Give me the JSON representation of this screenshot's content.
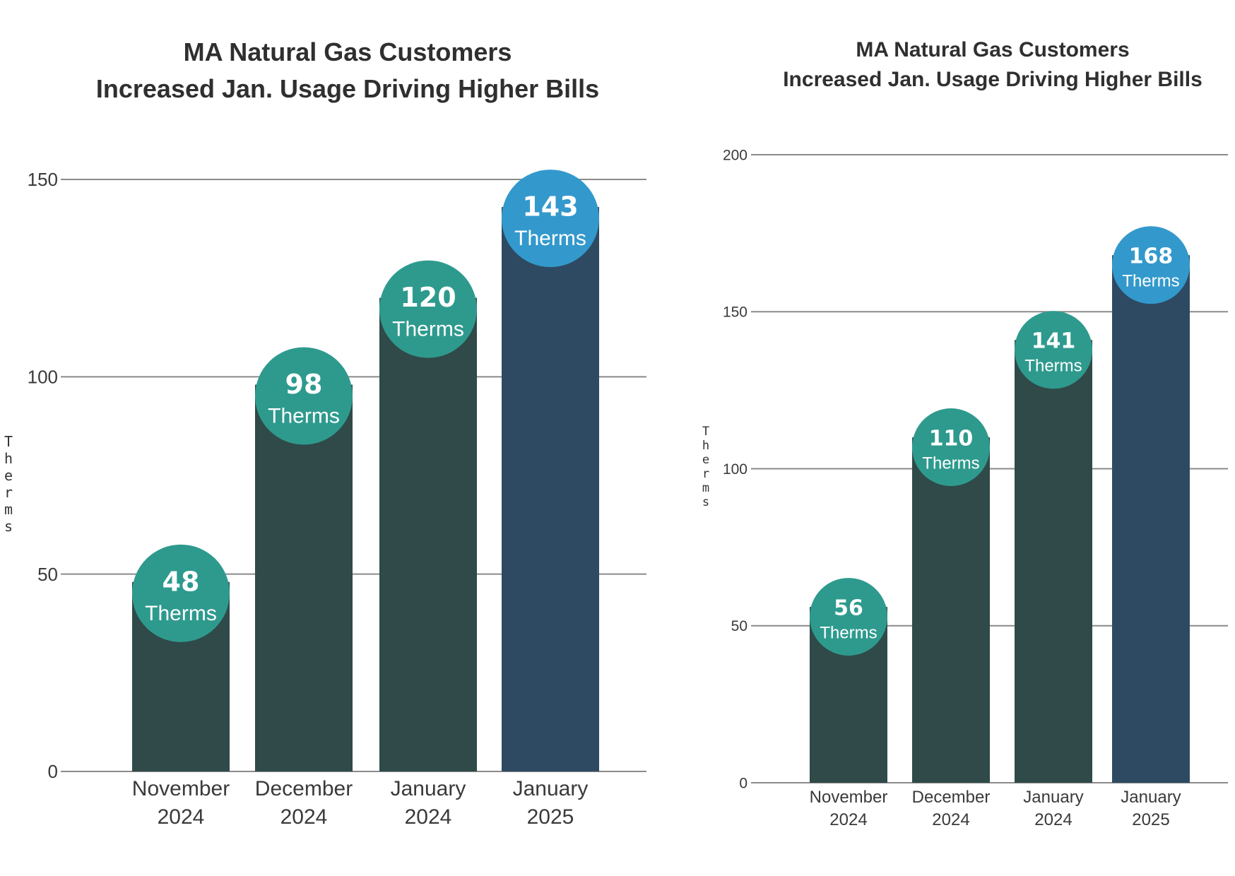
{
  "chart_data": [
    {
      "type": "bar",
      "title_lines": [
        "MA Natural Gas Customers",
        "Increased Jan. Usage Driving Higher Bills"
      ],
      "ylabel": "Therms",
      "ylim": [
        0,
        150
      ],
      "yticks": [
        0,
        50,
        100,
        150
      ],
      "grid": true,
      "categories": [
        [
          "November",
          "2024"
        ],
        [
          "December",
          "2024"
        ],
        [
          "January",
          "2024"
        ],
        [
          "January",
          "2025"
        ]
      ],
      "values": [
        48,
        98,
        120,
        143
      ],
      "label_values": [
        "48",
        "98",
        "120",
        "143"
      ],
      "label_unit": "Therms",
      "colors": {
        "bar": "#2f4a48",
        "bar_highlight": "#2e4a62",
        "circle": "#2e9a8e",
        "circle_highlight": "#3399cc",
        "grid": "#8a8a8a"
      },
      "highlight_index": 3
    },
    {
      "type": "bar",
      "title_lines": [
        "MA Natural Gas Customers",
        "Increased Jan. Usage Driving Higher Bills"
      ],
      "ylabel": "Therms",
      "ylim": [
        0,
        200
      ],
      "yticks": [
        0,
        50,
        100,
        150,
        200
      ],
      "grid": true,
      "categories": [
        [
          "November",
          "2024"
        ],
        [
          "December",
          "2024"
        ],
        [
          "January",
          "2024"
        ],
        [
          "January",
          "2025"
        ]
      ],
      "values": [
        56,
        110,
        141,
        168
      ],
      "label_values": [
        "56",
        "110",
        "141",
        "168"
      ],
      "label_unit": "Therms",
      "colors": {
        "bar": "#2f4a48",
        "bar_highlight": "#2e4a62",
        "circle": "#2e9a8e",
        "circle_highlight": "#3399cc",
        "grid": "#8a8a8a"
      },
      "highlight_index": 3
    }
  ]
}
